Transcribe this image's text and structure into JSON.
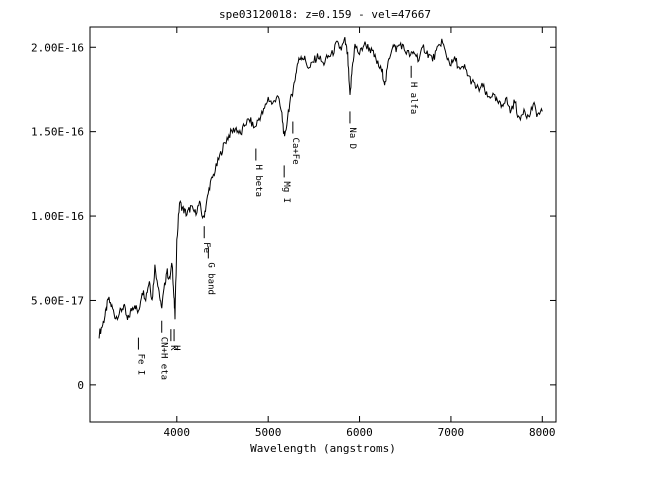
{
  "chart_data": {
    "type": "line",
    "title": "spe03120018: z=0.159 - vel=47667",
    "xlabel": "Wavelength (angstroms)",
    "ylabel": "",
    "xlim": [
      3050,
      8150
    ],
    "ylim": [
      -2.2e-17,
      2.12e-16
    ],
    "x_ticks": [
      {
        "value": 4000,
        "label": "4000"
      },
      {
        "value": 5000,
        "label": "5000"
      },
      {
        "value": 6000,
        "label": "6000"
      },
      {
        "value": 7000,
        "label": "7000"
      },
      {
        "value": 8000,
        "label": "8000"
      }
    ],
    "y_ticks": [
      {
        "value": 0,
        "label": "0"
      },
      {
        "value": 5e-17,
        "label": "5.00E-17"
      },
      {
        "value": 1e-16,
        "label": "1.00E-16"
      },
      {
        "value": 1.5e-16,
        "label": "1.50E-16"
      },
      {
        "value": 2e-16,
        "label": "2.00E-16"
      }
    ],
    "grid": false,
    "series": [
      {
        "color": "#000000",
        "points": [
          [
            3150,
            3e-17
          ],
          [
            3190,
            3.6e-17
          ],
          [
            3220,
            4.2e-17
          ],
          [
            3250,
            5.1e-17
          ],
          [
            3290,
            4.6e-17
          ],
          [
            3330,
            4e-17
          ],
          [
            3380,
            4.3e-17
          ],
          [
            3420,
            4.7e-17
          ],
          [
            3460,
            3.8e-17
          ],
          [
            3500,
            4.4e-17
          ],
          [
            3540,
            4.8e-17
          ],
          [
            3580,
            4.2e-17
          ],
          [
            3620,
            5.6e-17
          ],
          [
            3660,
            5.2e-17
          ],
          [
            3700,
            6.2e-17
          ],
          [
            3730,
            5e-17
          ],
          [
            3760,
            7e-17
          ],
          [
            3800,
            5.8e-17
          ],
          [
            3830,
            4.5e-17
          ],
          [
            3860,
            5.6e-17
          ],
          [
            3890,
            6.8e-17
          ],
          [
            3920,
            6.2e-17
          ],
          [
            3950,
            7.2e-17
          ],
          [
            3965,
            5.5e-17
          ],
          [
            3980,
            4e-17
          ],
          [
            4000,
            8.5e-17
          ],
          [
            4030,
            1.08e-16
          ],
          [
            4070,
            1.04e-16
          ],
          [
            4110,
            1.01e-16
          ],
          [
            4150,
            1.05e-16
          ],
          [
            4200,
            1.02e-16
          ],
          [
            4250,
            1.07e-16
          ],
          [
            4290,
            9.8e-17
          ],
          [
            4320,
            1.06e-16
          ],
          [
            4360,
            1.18e-16
          ],
          [
            4400,
            1.24e-16
          ],
          [
            4450,
            1.32e-16
          ],
          [
            4500,
            1.4e-16
          ],
          [
            4550,
            1.46e-16
          ],
          [
            4600,
            1.5e-16
          ],
          [
            4650,
            1.52e-16
          ],
          [
            4700,
            1.48e-16
          ],
          [
            4750,
            1.55e-16
          ],
          [
            4800,
            1.57e-16
          ],
          [
            4850,
            1.52e-16
          ],
          [
            4900,
            1.58e-16
          ],
          [
            4950,
            1.62e-16
          ],
          [
            5000,
            1.7e-16
          ],
          [
            5050,
            1.66e-16
          ],
          [
            5100,
            1.72e-16
          ],
          [
            5150,
            1.6e-16
          ],
          [
            5180,
            1.45e-16
          ],
          [
            5220,
            1.62e-16
          ],
          [
            5260,
            1.72e-16
          ],
          [
            5290,
            1.8e-16
          ],
          [
            5320,
            1.9e-16
          ],
          [
            5360,
            1.95e-16
          ],
          [
            5400,
            1.93e-16
          ],
          [
            5450,
            1.87e-16
          ],
          [
            5500,
            1.92e-16
          ],
          [
            5550,
            1.95e-16
          ],
          [
            5600,
            1.9e-16
          ],
          [
            5650,
            1.94e-16
          ],
          [
            5700,
            1.96e-16
          ],
          [
            5750,
            2.02e-16
          ],
          [
            5800,
            1.99e-16
          ],
          [
            5840,
            2.04e-16
          ],
          [
            5870,
            1.95e-16
          ],
          [
            5895,
            1.7e-16
          ],
          [
            5920,
            1.88e-16
          ],
          [
            5950,
            2.01e-16
          ],
          [
            6000,
            1.96e-16
          ],
          [
            6050,
            2.02e-16
          ],
          [
            6100,
            2e-16
          ],
          [
            6150,
            1.96e-16
          ],
          [
            6200,
            1.9e-16
          ],
          [
            6250,
            1.85e-16
          ],
          [
            6280,
            1.78e-16
          ],
          [
            6320,
            1.93e-16
          ],
          [
            6360,
            2.01e-16
          ],
          [
            6400,
            1.99e-16
          ],
          [
            6450,
            2.02e-16
          ],
          [
            6500,
            1.98e-16
          ],
          [
            6560,
            1.95e-16
          ],
          [
            6600,
            1.97e-16
          ],
          [
            6650,
            1.93e-16
          ],
          [
            6700,
            2e-16
          ],
          [
            6750,
            1.96e-16
          ],
          [
            6800,
            1.93e-16
          ],
          [
            6850,
            1.98e-16
          ],
          [
            6900,
            2.04e-16
          ],
          [
            6950,
            1.95e-16
          ],
          [
            7000,
            1.9e-16
          ],
          [
            7050,
            1.93e-16
          ],
          [
            7100,
            1.86e-16
          ],
          [
            7150,
            1.88e-16
          ],
          [
            7200,
            1.82e-16
          ],
          [
            7250,
            1.78e-16
          ],
          [
            7300,
            1.75e-16
          ],
          [
            7350,
            1.77e-16
          ],
          [
            7400,
            1.7e-16
          ],
          [
            7450,
            1.72e-16
          ],
          [
            7500,
            1.68e-16
          ],
          [
            7550,
            1.65e-16
          ],
          [
            7600,
            1.7e-16
          ],
          [
            7650,
            1.62e-16
          ],
          [
            7700,
            1.68e-16
          ],
          [
            7750,
            1.56e-16
          ],
          [
            7800,
            1.64e-16
          ],
          [
            7850,
            1.58e-16
          ],
          [
            7900,
            1.66e-16
          ],
          [
            7950,
            1.6e-16
          ],
          [
            8000,
            1.62e-16
          ]
        ]
      }
    ],
    "annotations": [
      {
        "label": "Fe I",
        "x": 3580,
        "y": 2.8e-17
      },
      {
        "label": "CN+H eta",
        "x": 3835,
        "y": 3.8e-17
      },
      {
        "label": "K",
        "x": 3935,
        "y": 3.3e-17
      },
      {
        "label": "H",
        "x": 3970,
        "y": 3.3e-17
      },
      {
        "label": "Fe",
        "x": 4300,
        "y": 9.4e-17
      },
      {
        "label": "G band",
        "x": 4345,
        "y": 8.2e-17
      },
      {
        "label": "H beta",
        "x": 4865,
        "y": 1.4e-16
      },
      {
        "label": "Mg I",
        "x": 5175,
        "y": 1.3e-16
      },
      {
        "label": "Ca+Fe",
        "x": 5270,
        "y": 1.56e-16
      },
      {
        "label": "Na D",
        "x": 5895,
        "y": 1.62e-16
      },
      {
        "label": "H alfa",
        "x": 6565,
        "y": 1.89e-16
      }
    ]
  }
}
